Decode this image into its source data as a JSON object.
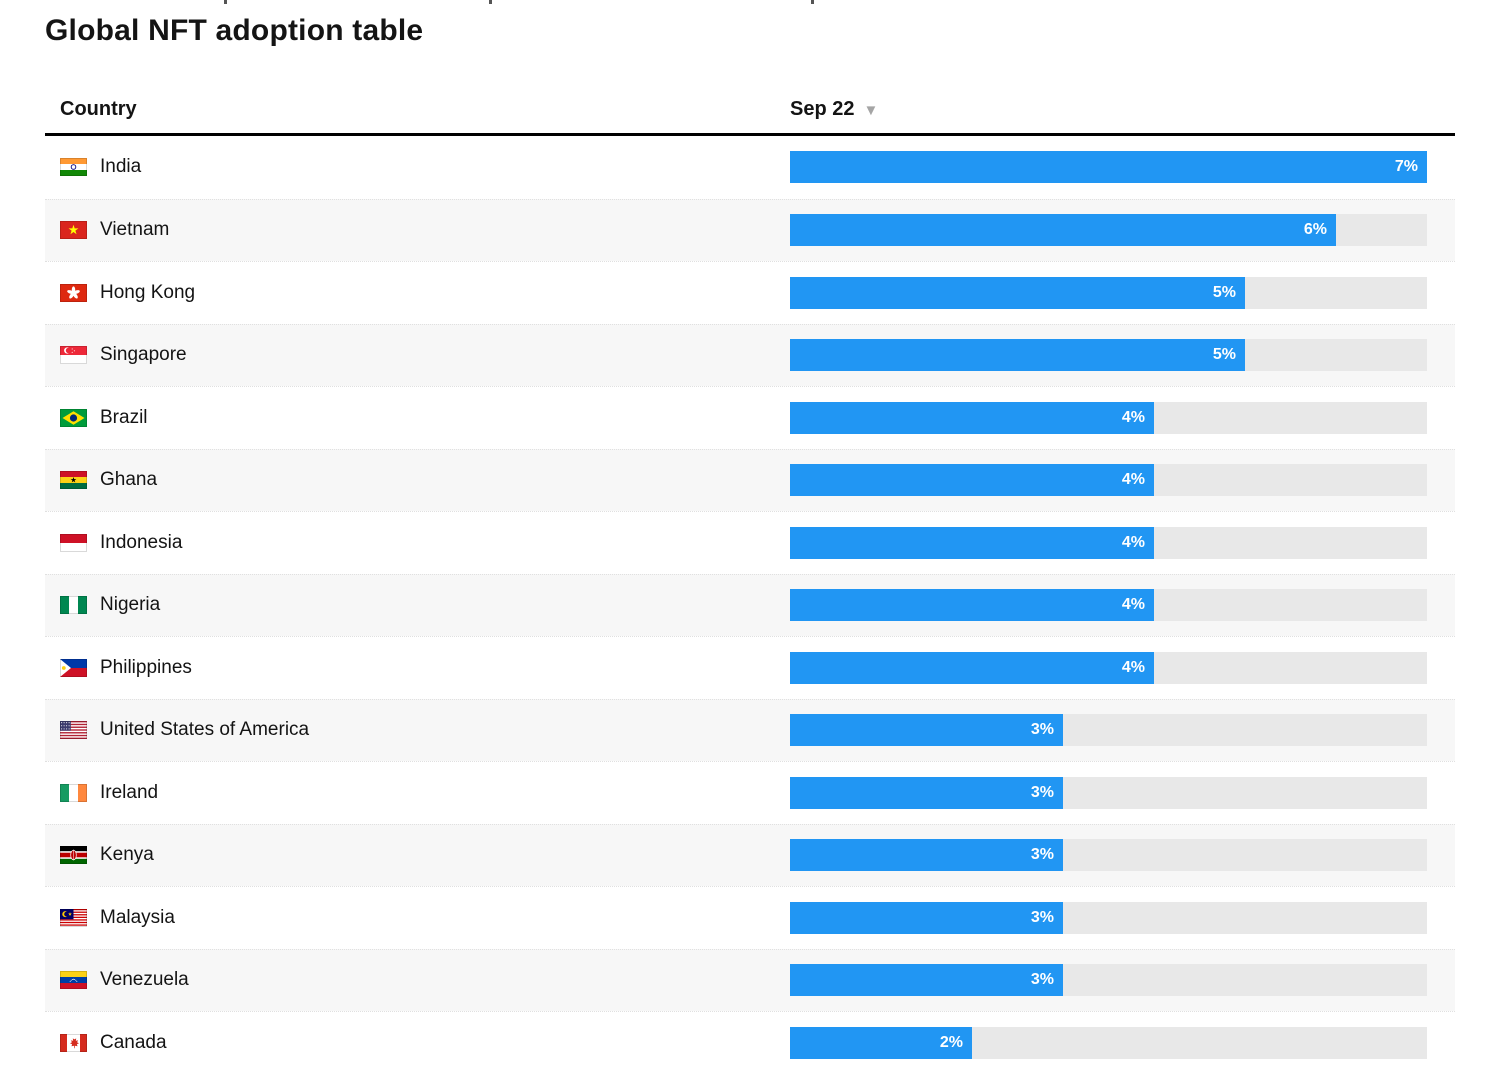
{
  "title": "Global NFT adoption table",
  "table": {
    "country_header": "Country",
    "value_header": "Sep 22",
    "sort_icon": "▼",
    "max_value": 7,
    "colors": {
      "bar": "#2196f3",
      "track": "#e8e8e8",
      "stripe": "#f7f7f7"
    },
    "rows": [
      {
        "country": "India",
        "flag": "india",
        "value": 7,
        "label": "7%"
      },
      {
        "country": "Vietnam",
        "flag": "vietnam",
        "value": 6,
        "label": "6%"
      },
      {
        "country": "Hong Kong",
        "flag": "hong-kong",
        "value": 5,
        "label": "5%"
      },
      {
        "country": "Singapore",
        "flag": "singapore",
        "value": 5,
        "label": "5%"
      },
      {
        "country": "Brazil",
        "flag": "brazil",
        "value": 4,
        "label": "4%"
      },
      {
        "country": "Ghana",
        "flag": "ghana",
        "value": 4,
        "label": "4%"
      },
      {
        "country": "Indonesia",
        "flag": "indonesia",
        "value": 4,
        "label": "4%"
      },
      {
        "country": "Nigeria",
        "flag": "nigeria",
        "value": 4,
        "label": "4%"
      },
      {
        "country": "Philippines",
        "flag": "philippines",
        "value": 4,
        "label": "4%"
      },
      {
        "country": "United States of America",
        "flag": "usa",
        "value": 3,
        "label": "3%"
      },
      {
        "country": "Ireland",
        "flag": "ireland",
        "value": 3,
        "label": "3%"
      },
      {
        "country": "Kenya",
        "flag": "kenya",
        "value": 3,
        "label": "3%"
      },
      {
        "country": "Malaysia",
        "flag": "malaysia",
        "value": 3,
        "label": "3%"
      },
      {
        "country": "Venezuela",
        "flag": "venezuela",
        "value": 3,
        "label": "3%"
      },
      {
        "country": "Canada",
        "flag": "canada",
        "value": 2,
        "label": "2%"
      }
    ]
  },
  "chart_data": {
    "type": "bar",
    "orientation": "horizontal",
    "title": "Global NFT adoption table",
    "series_label": "Sep 22",
    "unit": "%",
    "categories": [
      "India",
      "Vietnam",
      "Hong Kong",
      "Singapore",
      "Brazil",
      "Ghana",
      "Indonesia",
      "Nigeria",
      "Philippines",
      "United States of America",
      "Ireland",
      "Kenya",
      "Malaysia",
      "Venezuela",
      "Canada"
    ],
    "values": [
      7,
      6,
      5,
      5,
      4,
      4,
      4,
      4,
      4,
      3,
      3,
      3,
      3,
      3,
      2
    ],
    "xlim": [
      0,
      7
    ],
    "sort": "descending",
    "grid": false,
    "legend": "none"
  }
}
